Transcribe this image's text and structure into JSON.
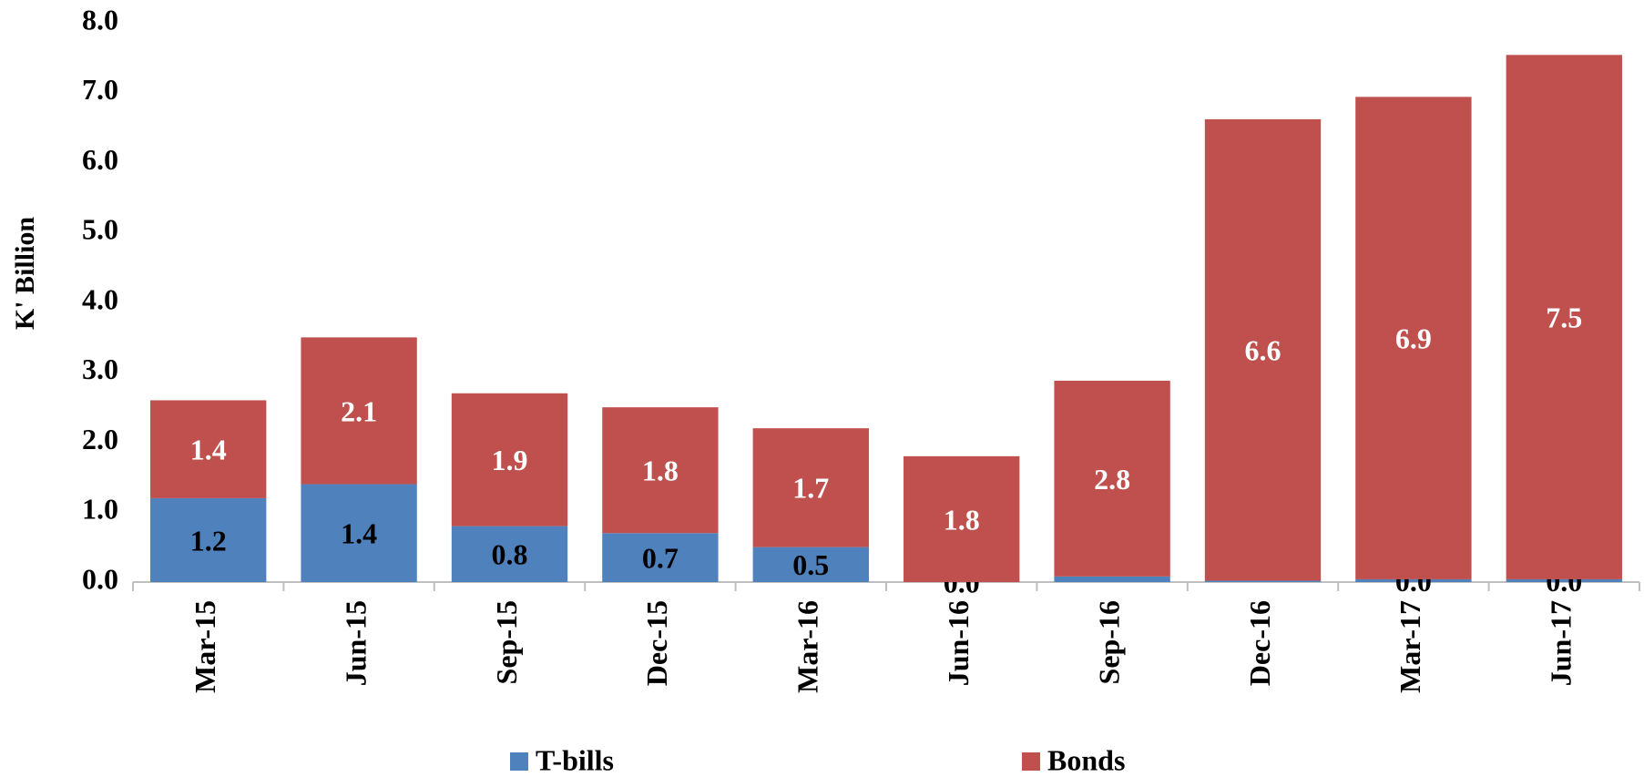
{
  "chart_data": {
    "type": "bar",
    "stacked": true,
    "y_label": "K' Billion",
    "categories": [
      "Mar-15",
      "Jun-15",
      "Sep-15",
      "Dec-15",
      "Mar-16",
      "Jun-16",
      "Sep-16",
      "Dec-16",
      "Mar-17",
      "Jun-17"
    ],
    "series": [
      {
        "name": "T-bills",
        "color": "#4f81bd",
        "values": [
          1.2,
          1.4,
          0.8,
          0.7,
          0.5,
          0.0,
          0.08,
          0.02,
          0.04,
          0.04
        ],
        "value_labels": [
          "1.2",
          "1.4",
          "0.8",
          "0.7",
          "0.5",
          "0.0",
          null,
          null,
          "0.0",
          "0.0"
        ]
      },
      {
        "name": "Bonds",
        "color": "#c0504d",
        "values": [
          1.4,
          2.1,
          1.9,
          1.8,
          1.7,
          1.8,
          2.8,
          6.6,
          6.9,
          7.5
        ]
      }
    ],
    "ylim": [
      0,
      8
    ],
    "yticks": [
      {
        "value": 0,
        "label": "0.0"
      },
      {
        "value": 1,
        "label": "1.0"
      },
      {
        "value": 2,
        "label": "2.0"
      },
      {
        "value": 3,
        "label": "3.0"
      },
      {
        "value": 4,
        "label": "4.0"
      },
      {
        "value": 5,
        "label": "5.0"
      },
      {
        "value": 6,
        "label": "6.0"
      },
      {
        "value": 7,
        "label": "7.0"
      },
      {
        "value": 8,
        "label": "8.0"
      }
    ],
    "legend": "bottom"
  }
}
